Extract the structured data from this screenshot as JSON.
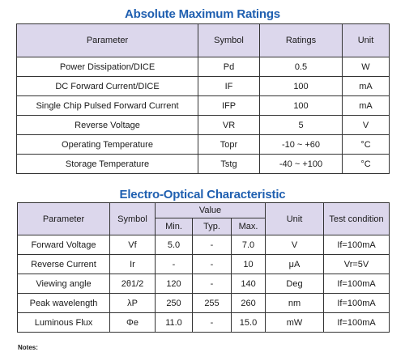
{
  "amr": {
    "title": "Absolute Maximum Ratings",
    "headers": [
      "Parameter",
      "Symbol",
      "Ratings",
      "Unit"
    ],
    "rows": [
      [
        "Power Dissipation/DICE",
        "Pd",
        "0.5",
        "W"
      ],
      [
        "DC Forward Current/DICE",
        "IF",
        "100",
        "mA"
      ],
      [
        "Single Chip Pulsed Forward Current",
        "IFP",
        "100",
        "mA"
      ],
      [
        "Reverse Voltage",
        "VR",
        "5",
        "V"
      ],
      [
        "Operating Temperature",
        "Topr",
        "-10 ~ +60",
        "°C"
      ],
      [
        "Storage Temperature",
        "Tstg",
        "-40 ~ +100",
        "°C"
      ]
    ]
  },
  "eoc": {
    "title": "Electro-Optical Characteristic",
    "headers": {
      "parameter": "Parameter",
      "symbol": "Symbol",
      "value": "Value",
      "min": "Min.",
      "typ": "Typ.",
      "max": "Max.",
      "unit": "Unit",
      "test": "Test condition"
    },
    "rows": [
      [
        "Forward Voltage",
        "Vf",
        "5.0",
        "-",
        "7.0",
        "V",
        "If=100mA"
      ],
      [
        "Reverse Current",
        "Ir",
        "-",
        "-",
        "10",
        "μA",
        "Vr=5V"
      ],
      [
        "Viewing angle",
        "2θ1/2",
        "120",
        "-",
        "140",
        "Deg",
        "If=100mA"
      ],
      [
        "Peak wavelength",
        "λP",
        "250",
        "255",
        "260",
        "nm",
        "If=100mA"
      ],
      [
        "Luminous Flux",
        "Φe",
        "11.0",
        "-",
        "15.0",
        "mW",
        "If=100mA"
      ]
    ]
  },
  "notes": "Notes:"
}
